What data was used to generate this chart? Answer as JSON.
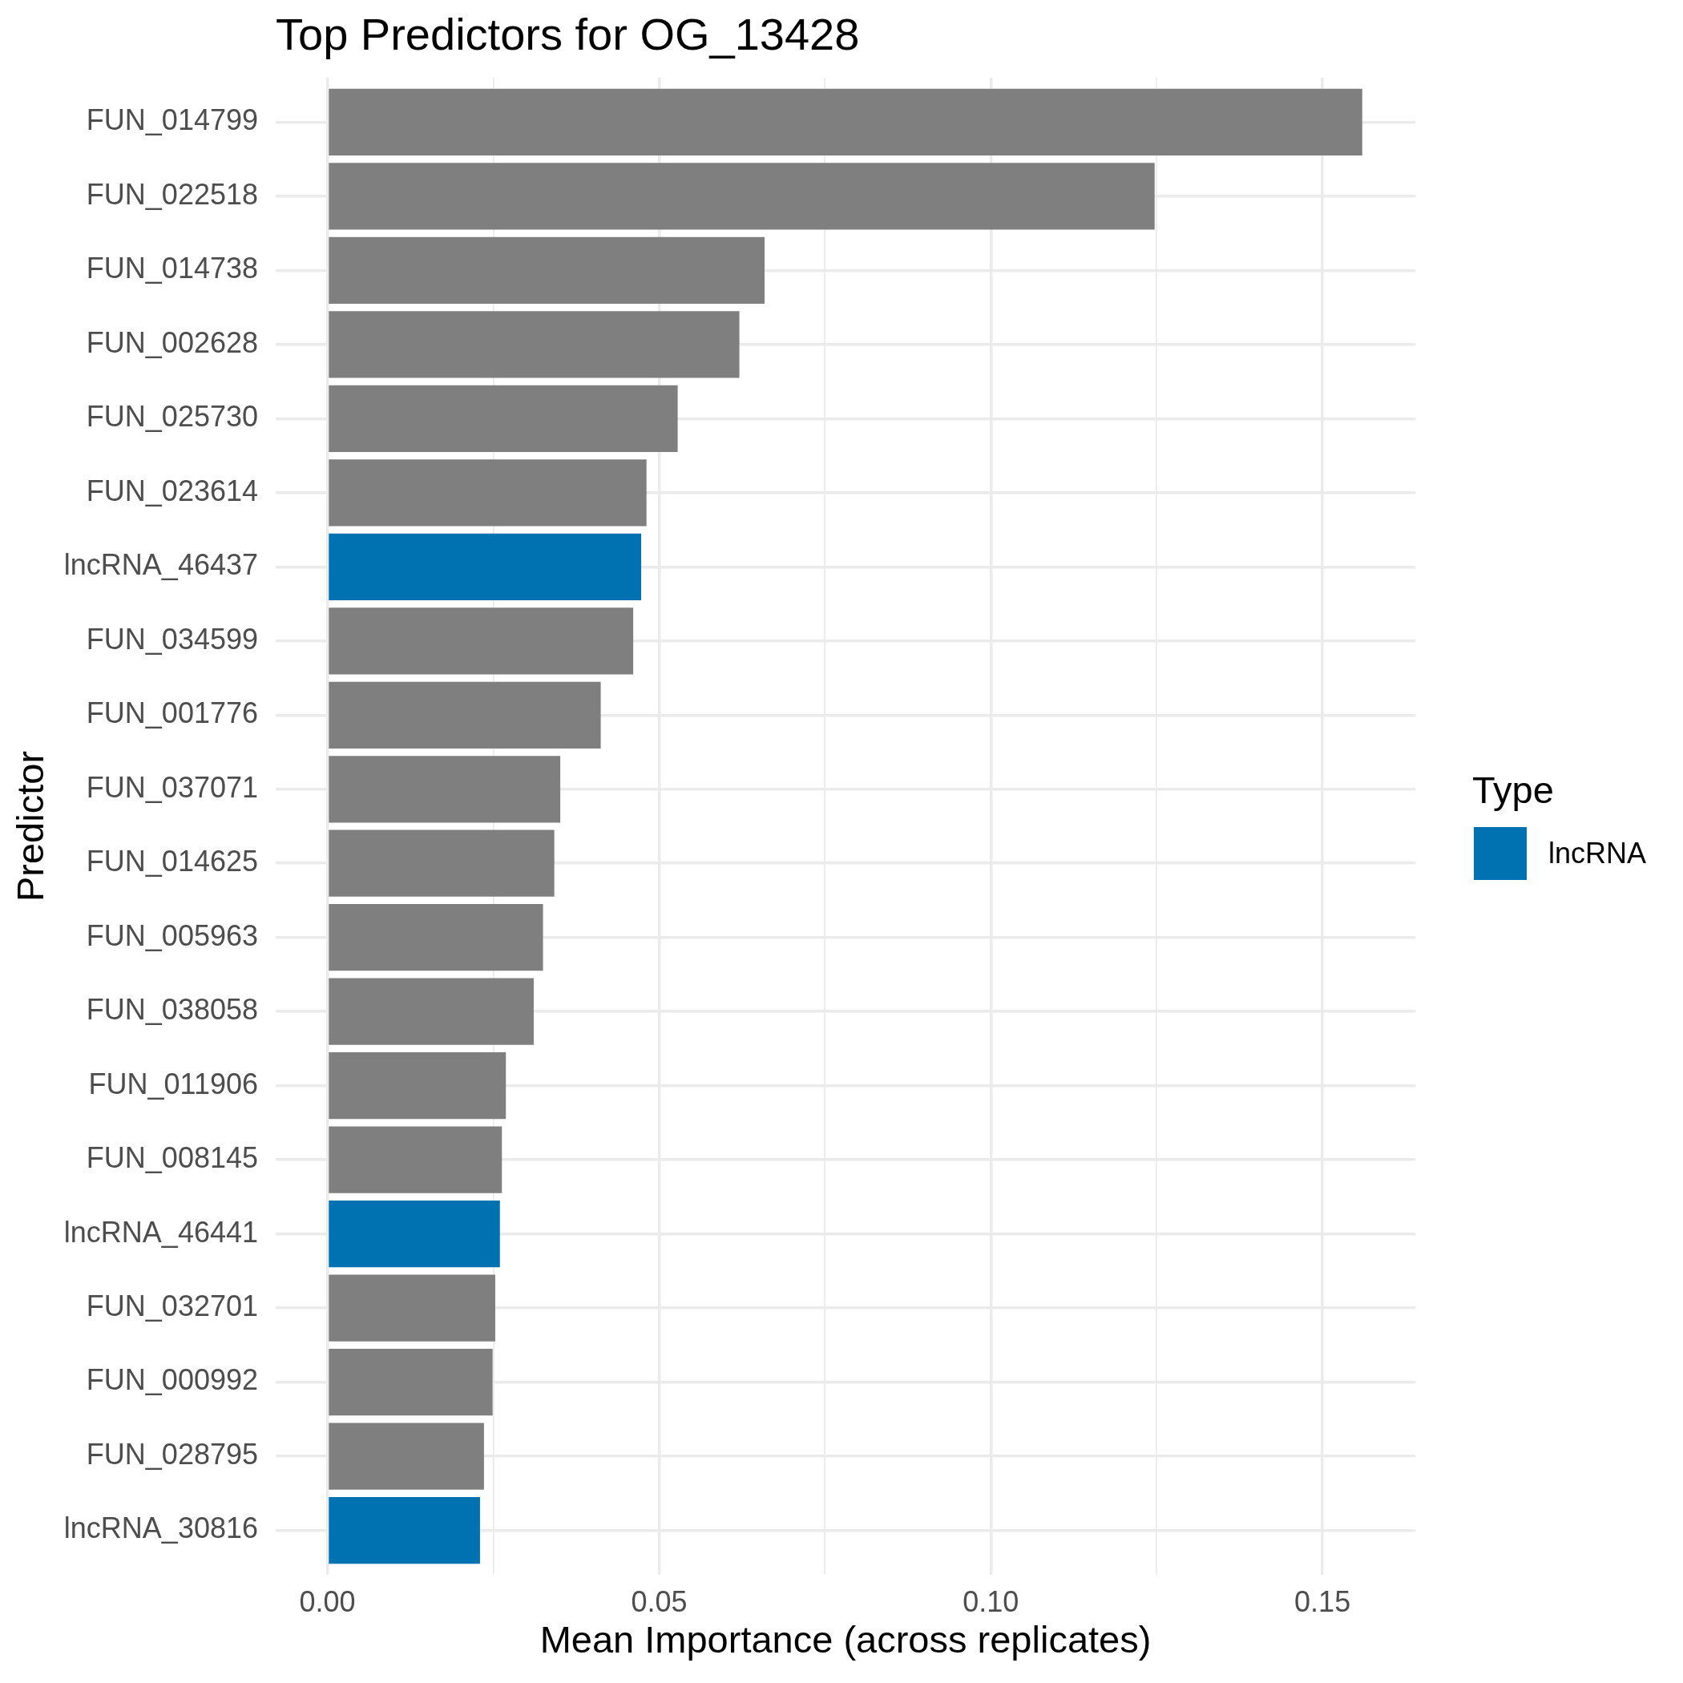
{
  "chart_data": {
    "type": "bar",
    "orientation": "horizontal",
    "title": "Top Predictors for OG_13428",
    "xlabel": "Mean Importance (across replicates)",
    "ylabel": "Predictor",
    "legend_title": "Type",
    "categories": [
      "FUN_014799",
      "FUN_022518",
      "FUN_014738",
      "FUN_002628",
      "FUN_025730",
      "FUN_023614",
      "lncRNA_46437",
      "FUN_034599",
      "FUN_001776",
      "FUN_037071",
      "FUN_014625",
      "FUN_005963",
      "FUN_038058",
      "FUN_011906",
      "FUN_008145",
      "lncRNA_46441",
      "FUN_032701",
      "FUN_000992",
      "FUN_028795",
      "lncRNA_30816"
    ],
    "series": [
      {
        "color": "#7f7f7f",
        "values": [
          0.156,
          0.1247,
          0.0659,
          0.0621,
          0.0528,
          0.0481,
          null,
          0.0461,
          0.0412,
          0.0351,
          0.0342,
          0.0325,
          0.0311,
          0.0269,
          0.0263,
          null,
          0.0253,
          0.0249,
          0.0236,
          null
        ]
      },
      {
        "name": "lncRNA",
        "color": "#0072b2",
        "values": [
          null,
          null,
          null,
          null,
          null,
          null,
          0.0473,
          null,
          null,
          null,
          null,
          null,
          null,
          null,
          null,
          0.026,
          null,
          null,
          null,
          0.023
        ]
      }
    ],
    "xlim": [
      -0.0078,
      0.164
    ],
    "xticks": [
      {
        "value": 0,
        "label": "0.00"
      },
      {
        "value": 0.025,
        "label": null
      },
      0.05,
      {
        "value": 0.075,
        "label": null
      },
      {
        "value": 0.1,
        "label": "0.10"
      },
      {
        "value": 0.125,
        "label": null
      },
      0.15
    ],
    "grid": true,
    "legend": "right"
  }
}
